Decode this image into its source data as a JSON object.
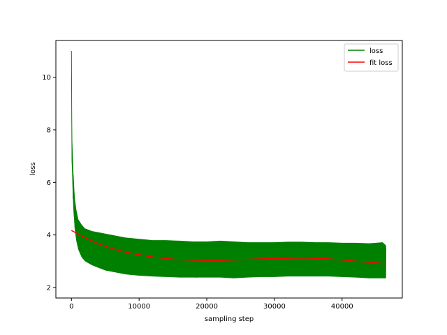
{
  "chart_data": {
    "type": "line",
    "title": "",
    "xlabel": "sampling step",
    "ylabel": "loss",
    "xlim": [
      -2300,
      48900
    ],
    "ylim": [
      1.6,
      11.4
    ],
    "xticks": [
      0,
      10000,
      20000,
      30000,
      40000
    ],
    "yticks": [
      2,
      4,
      6,
      8,
      10
    ],
    "grid": false,
    "legend_position": "top-right",
    "series": [
      {
        "name": "loss",
        "color": "#008000",
        "x": [
          0,
          50,
          100,
          200,
          300,
          500,
          700,
          1000,
          1500,
          2000,
          3000,
          4000,
          5000,
          6000,
          7000,
          8000,
          10000,
          12000,
          14000,
          16000,
          18000,
          20000,
          22000,
          24000,
          26000,
          28000,
          30000,
          32000,
          34000,
          36000,
          38000,
          40000,
          42000,
          44000,
          46000,
          46500
        ],
        "y": [
          11.0,
          8.0,
          7.1,
          6.4,
          5.8,
          5.0,
          4.6,
          4.2,
          3.9,
          3.75,
          3.55,
          3.45,
          3.35,
          3.3,
          3.22,
          3.18,
          3.1,
          3.05,
          3.05,
          3.02,
          3.0,
          3.0,
          3.0,
          3.0,
          3.02,
          3.04,
          3.05,
          3.07,
          3.08,
          3.08,
          3.08,
          3.05,
          3.0,
          2.97,
          2.92,
          2.9
        ],
        "band_low": [
          11.0,
          7.0,
          6.4,
          5.5,
          4.9,
          4.2,
          3.8,
          3.45,
          3.15,
          3.0,
          2.85,
          2.75,
          2.65,
          2.6,
          2.55,
          2.5,
          2.45,
          2.42,
          2.4,
          2.38,
          2.38,
          2.38,
          2.38,
          2.35,
          2.38,
          2.4,
          2.4,
          2.42,
          2.42,
          2.42,
          2.42,
          2.4,
          2.38,
          2.35,
          2.35,
          2.35
        ],
        "band_high": [
          11.0,
          9.0,
          7.8,
          7.0,
          6.3,
          5.4,
          5.0,
          4.6,
          4.4,
          4.25,
          4.15,
          4.1,
          4.05,
          4.0,
          3.95,
          3.9,
          3.85,
          3.8,
          3.8,
          3.78,
          3.75,
          3.75,
          3.78,
          3.75,
          3.72,
          3.72,
          3.72,
          3.74,
          3.74,
          3.72,
          3.72,
          3.7,
          3.7,
          3.68,
          3.72,
          3.6
        ]
      },
      {
        "name": "fit loss",
        "color": "#ff0000",
        "x": [
          0,
          2000,
          4000,
          6000,
          8000,
          10000,
          12000,
          14000,
          16000,
          18000,
          20000,
          22000,
          24000,
          26000,
          28000,
          30000,
          32000,
          34000,
          36000,
          38000,
          40000,
          42000,
          44000,
          46500
        ],
        "y": [
          4.17,
          3.9,
          3.66,
          3.48,
          3.35,
          3.25,
          3.16,
          3.1,
          3.06,
          3.04,
          3.03,
          3.03,
          3.05,
          3.07,
          3.09,
          3.1,
          3.11,
          3.12,
          3.11,
          3.09,
          3.05,
          3.0,
          2.96,
          2.9
        ]
      }
    ]
  }
}
